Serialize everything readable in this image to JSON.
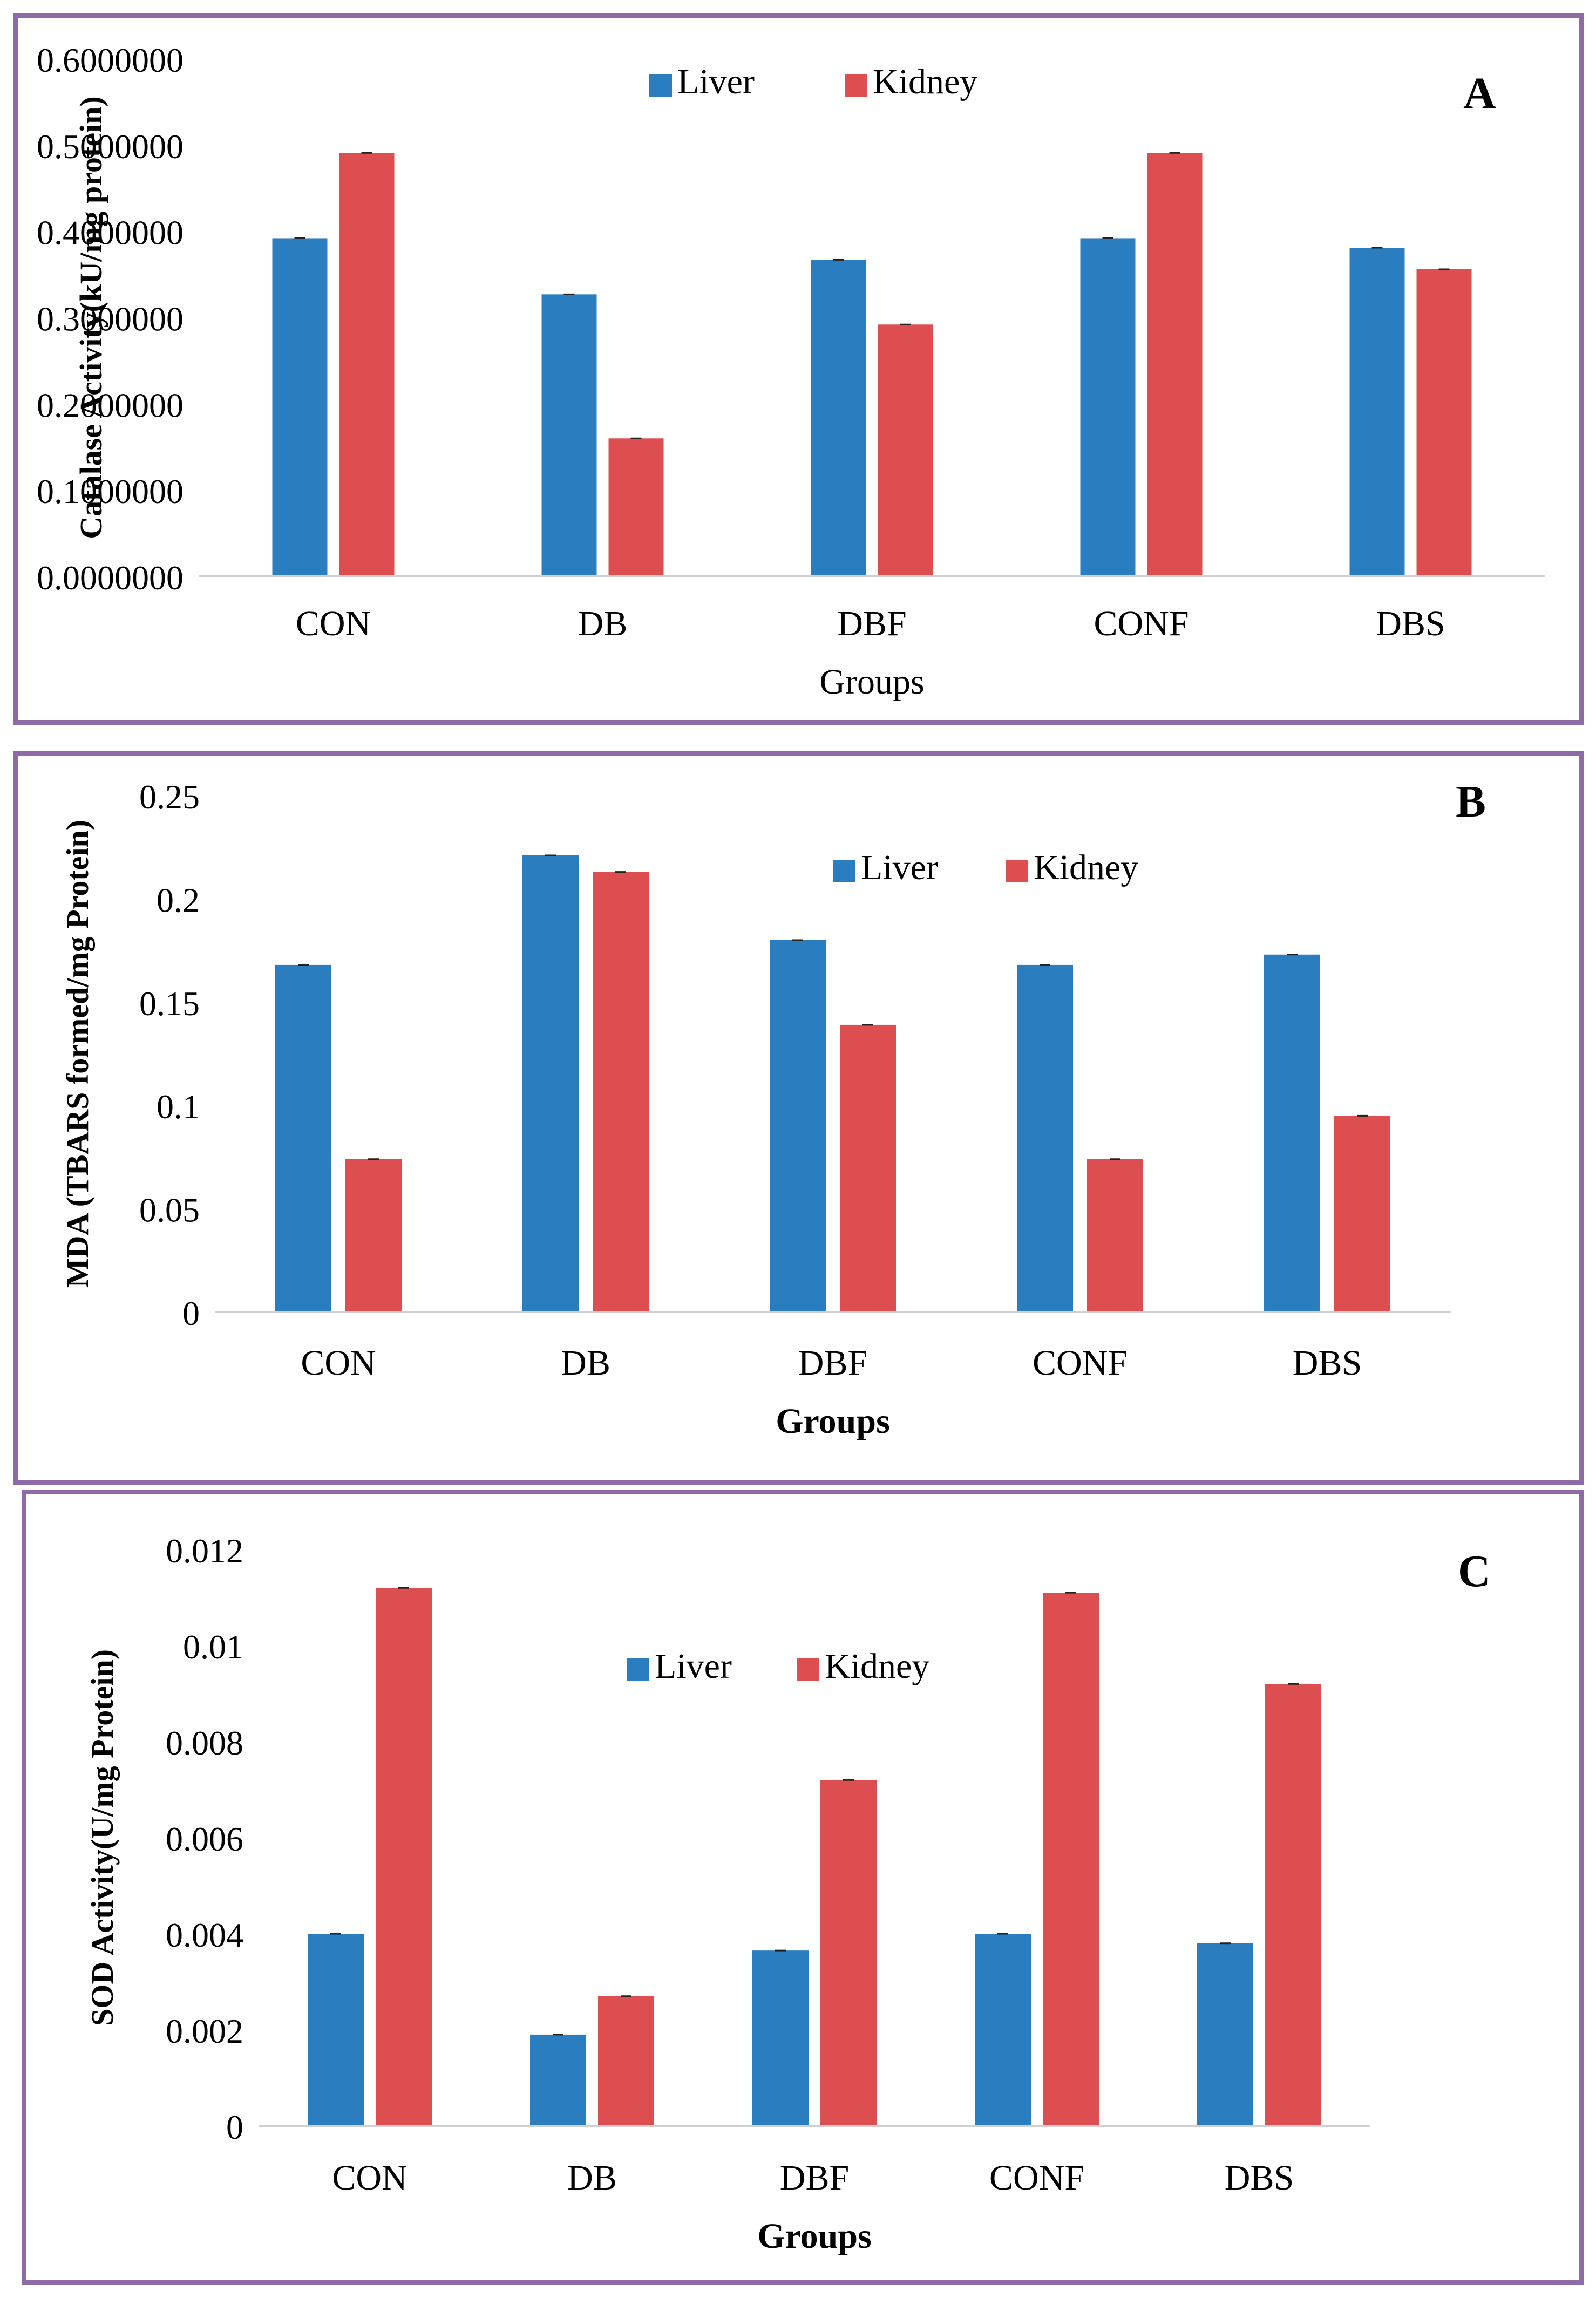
{
  "colors": {
    "liver": "#2a7ec0",
    "kidney": "#dc4e4f",
    "frame": "#8e6aa6",
    "axis": "#d0d0d0"
  },
  "chart_data": [
    {
      "panel_label": "A",
      "type": "bar",
      "categories": [
        "CON",
        "DB",
        "DBF",
        "CONF",
        "DBS"
      ],
      "series": [
        {
          "name": "Liver",
          "values": [
            0.392,
            0.327,
            0.367,
            0.392,
            0.381
          ]
        },
        {
          "name": "Kidney",
          "values": [
            0.491,
            0.16,
            0.292,
            0.491,
            0.356
          ]
        }
      ],
      "xlabel": "Groups",
      "ylabel": "Catalase Activity(kU/mg protein)",
      "ylim": [
        0,
        0.6
      ],
      "yticks": [
        0,
        0.1,
        0.2,
        0.3,
        0.4,
        0.5,
        0.6
      ],
      "ytick_labels": [
        "0.0000000",
        "0.1000000",
        "0.2000000",
        "0.3000000",
        "0.4000000",
        "0.5000000",
        "0.6000000"
      ],
      "legend_position": "top-center"
    },
    {
      "panel_label": "B",
      "type": "bar",
      "categories": [
        "CON",
        "DB",
        "DBF",
        "CONF",
        "DBS"
      ],
      "series": [
        {
          "name": "Liver",
          "values": [
            0.168,
            0.221,
            0.18,
            0.168,
            0.173
          ]
        },
        {
          "name": "Kidney",
          "values": [
            0.074,
            0.213,
            0.139,
            0.074,
            0.095
          ]
        }
      ],
      "xlabel": "Groups",
      "ylabel": "MDA (TBARS formed/mg Protein)",
      "ylim": [
        0,
        0.25
      ],
      "yticks": [
        0,
        0.05,
        0.1,
        0.15,
        0.2,
        0.25
      ],
      "ytick_labels": [
        "0",
        "0.05",
        "0.1",
        "0.15",
        "0.2",
        "0.25"
      ],
      "legend_position": "top-center"
    },
    {
      "panel_label": "C",
      "type": "bar",
      "categories": [
        "CON",
        "DB",
        "DBF",
        "CONF",
        "DBS"
      ],
      "series": [
        {
          "name": "Liver",
          "values": [
            0.004,
            0.0019,
            0.00365,
            0.004,
            0.0038
          ]
        },
        {
          "name": "Kidney",
          "values": [
            0.0112,
            0.0027,
            0.0072,
            0.0111,
            0.0092
          ]
        }
      ],
      "xlabel": "Groups",
      "ylabel": "SOD Activity(U/mg Protein)",
      "ylim": [
        0,
        0.012
      ],
      "yticks": [
        0,
        0.002,
        0.004,
        0.006,
        0.008,
        0.01,
        0.012
      ],
      "ytick_labels": [
        "0",
        "0.002",
        "0.004",
        "0.006",
        "0.008",
        "0.01",
        "0.012"
      ],
      "legend_position": "top-center"
    }
  ]
}
